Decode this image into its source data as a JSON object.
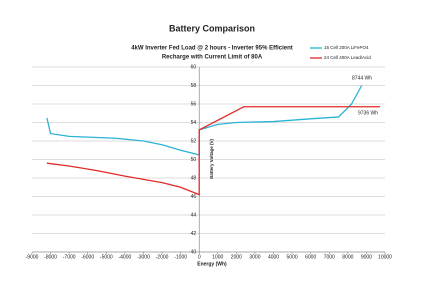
{
  "chart_data": {
    "type": "line",
    "title": "Battery Comparison",
    "subtitle": [
      "4kW Inverter Fed Load @ 2 hours - Inverter 95% Efficient",
      "Recharge with Current Limit of 80A"
    ],
    "x_label": "Energy (Wh)",
    "y_label": "Battery Voltage (V)",
    "series": [
      {
        "name": "16 Cell 200A LiFePO4",
        "color": "#2ab3d6",
        "x": [
          -8200,
          -8000,
          -7000,
          -4500,
          -3000,
          -2000,
          -1000,
          0,
          0,
          500,
          1000,
          2000,
          4000,
          6000,
          7500,
          8200,
          8744
        ],
        "values": [
          54.5,
          52.8,
          52.5,
          52.3,
          52.0,
          51.6,
          51.0,
          50.5,
          53.2,
          53.5,
          53.8,
          54.0,
          54.1,
          54.4,
          54.6,
          56.0,
          58.0
        ]
      },
      {
        "name": "24 Cell 400A Lead/Acid",
        "color": "#e02a2a",
        "x": [
          -8200,
          -7000,
          -5500,
          -4000,
          -2000,
          -1000,
          0,
          0,
          2400,
          9736
        ],
        "values": [
          49.6,
          49.3,
          48.8,
          48.2,
          47.5,
          47.0,
          46.2,
          53.2,
          55.7,
          55.7
        ]
      }
    ],
    "annotations": [
      "8744 Wh",
      "9736 Wh"
    ],
    "xlim": [
      -9000,
      10000
    ],
    "xticks": [
      -9000,
      -8000,
      -7000,
      -6000,
      -5000,
      -4000,
      -3000,
      -2000,
      -1000,
      0,
      1000,
      2000,
      3000,
      4000,
      5000,
      6000,
      7000,
      8000,
      9000,
      10000
    ],
    "ylim": [
      40,
      60
    ],
    "yticks": [
      40,
      42,
      44,
      46,
      48,
      50,
      52,
      54,
      56,
      58,
      60
    ],
    "grid": true,
    "legend": "top-right"
  }
}
